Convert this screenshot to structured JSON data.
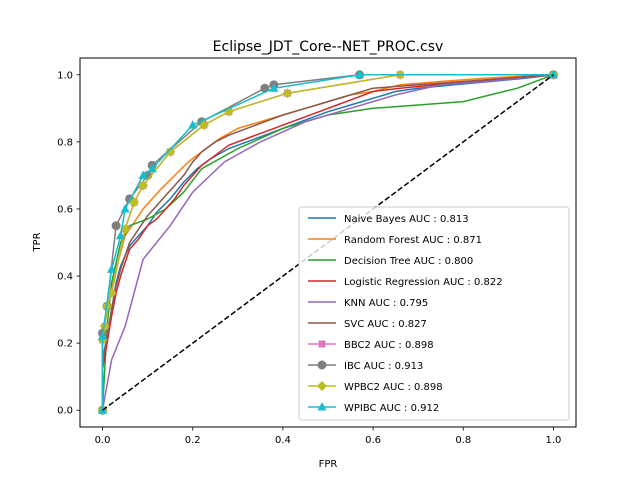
{
  "chart_data": {
    "type": "line",
    "title": "Eclipse_JDT_Core--NET_PROC.csv",
    "xlabel": "FPR",
    "ylabel": "TPR",
    "xlim": [
      -0.05,
      1.05
    ],
    "ylim": [
      -0.05,
      1.05
    ],
    "x_ticks": [
      0.0,
      0.2,
      0.4,
      0.6,
      0.8,
      1.0
    ],
    "y_ticks": [
      0.0,
      0.2,
      0.4,
      0.6,
      0.8,
      1.0
    ],
    "x_tick_labels": [
      "0.0",
      "0.2",
      "0.4",
      "0.6",
      "0.8",
      "1.0"
    ],
    "y_tick_labels": [
      "0.0",
      "0.2",
      "0.4",
      "0.6",
      "0.8",
      "1.0"
    ],
    "legend_position": "lower-right",
    "baseline": {
      "x": [
        0,
        1
      ],
      "y": [
        0,
        1
      ],
      "color": "#000000",
      "style": "dashed"
    },
    "series": [
      {
        "name": "Naive Bayes AUC : 0.813",
        "color": "#1f77b4",
        "marker": "none",
        "points": [
          [
            0,
            0
          ],
          [
            0,
            0.15
          ],
          [
            0.01,
            0.22
          ],
          [
            0.02,
            0.3
          ],
          [
            0.03,
            0.38
          ],
          [
            0.04,
            0.43
          ],
          [
            0.05,
            0.46
          ],
          [
            0.06,
            0.49
          ],
          [
            0.08,
            0.52
          ],
          [
            0.1,
            0.55
          ],
          [
            0.12,
            0.59
          ],
          [
            0.15,
            0.63
          ],
          [
            0.18,
            0.68
          ],
          [
            0.21,
            0.72
          ],
          [
            0.24,
            0.75
          ],
          [
            0.28,
            0.78
          ],
          [
            0.32,
            0.8
          ],
          [
            0.36,
            0.82
          ],
          [
            0.4,
            0.84
          ],
          [
            0.44,
            0.86
          ],
          [
            0.5,
            0.89
          ],
          [
            0.55,
            0.91
          ],
          [
            0.6,
            0.93
          ],
          [
            0.65,
            0.95
          ],
          [
            0.7,
            0.96
          ],
          [
            0.78,
            0.97
          ],
          [
            0.86,
            0.98
          ],
          [
            0.94,
            0.99
          ],
          [
            1,
            1
          ]
        ]
      },
      {
        "name": "Random Forest AUC : 0.871",
        "color": "#ff7f0e",
        "marker": "none",
        "points": [
          [
            0,
            0
          ],
          [
            0,
            0.2
          ],
          [
            0.01,
            0.3
          ],
          [
            0.02,
            0.36
          ],
          [
            0.03,
            0.42
          ],
          [
            0.04,
            0.47
          ],
          [
            0.05,
            0.52
          ],
          [
            0.07,
            0.56
          ],
          [
            0.09,
            0.6
          ],
          [
            0.11,
            0.63
          ],
          [
            0.13,
            0.66
          ],
          [
            0.16,
            0.7
          ],
          [
            0.19,
            0.74
          ],
          [
            0.22,
            0.77
          ],
          [
            0.26,
            0.81
          ],
          [
            0.3,
            0.84
          ],
          [
            0.35,
            0.86
          ],
          [
            0.4,
            0.88
          ],
          [
            0.45,
            0.9
          ],
          [
            0.5,
            0.92
          ],
          [
            0.55,
            0.94
          ],
          [
            0.6,
            0.95
          ],
          [
            0.66,
            0.97
          ],
          [
            0.75,
            0.98
          ],
          [
            0.85,
            0.99
          ],
          [
            1,
            1
          ]
        ]
      },
      {
        "name": "Decision Tree AUC : 0.800",
        "color": "#2ca02c",
        "marker": "none",
        "points": [
          [
            0,
            0
          ],
          [
            0.01,
            0.25
          ],
          [
            0.02,
            0.38
          ],
          [
            0.04,
            0.5
          ],
          [
            0.06,
            0.55
          ],
          [
            0.1,
            0.57
          ],
          [
            0.14,
            0.6
          ],
          [
            0.18,
            0.65
          ],
          [
            0.22,
            0.72
          ],
          [
            0.3,
            0.78
          ],
          [
            0.4,
            0.84
          ],
          [
            0.5,
            0.88
          ],
          [
            0.6,
            0.9
          ],
          [
            0.7,
            0.91
          ],
          [
            0.8,
            0.92
          ],
          [
            0.86,
            0.94
          ],
          [
            0.92,
            0.96
          ],
          [
            1,
            1
          ]
        ]
      },
      {
        "name": "Logistic Regression AUC : 0.822",
        "color": "#d62728",
        "marker": "none",
        "points": [
          [
            0,
            0
          ],
          [
            0,
            0.12
          ],
          [
            0.01,
            0.2
          ],
          [
            0.02,
            0.28
          ],
          [
            0.03,
            0.35
          ],
          [
            0.04,
            0.4
          ],
          [
            0.05,
            0.44
          ],
          [
            0.06,
            0.48
          ],
          [
            0.08,
            0.51
          ],
          [
            0.1,
            0.55
          ],
          [
            0.12,
            0.57
          ],
          [
            0.14,
            0.6
          ],
          [
            0.16,
            0.63
          ],
          [
            0.18,
            0.67
          ],
          [
            0.2,
            0.7
          ],
          [
            0.22,
            0.73
          ],
          [
            0.25,
            0.76
          ],
          [
            0.28,
            0.79
          ],
          [
            0.32,
            0.81
          ],
          [
            0.36,
            0.83
          ],
          [
            0.4,
            0.85
          ],
          [
            0.44,
            0.87
          ],
          [
            0.48,
            0.89
          ],
          [
            0.52,
            0.91
          ],
          [
            0.56,
            0.93
          ],
          [
            0.6,
            0.95
          ],
          [
            0.66,
            0.96
          ],
          [
            0.74,
            0.97
          ],
          [
            0.82,
            0.98
          ],
          [
            0.9,
            0.99
          ],
          [
            1,
            1
          ]
        ]
      },
      {
        "name": "KNN AUC : 0.795",
        "color": "#9467bd",
        "marker": "none",
        "points": [
          [
            0,
            0
          ],
          [
            0.02,
            0.15
          ],
          [
            0.05,
            0.25
          ],
          [
            0.09,
            0.45
          ],
          [
            0.15,
            0.55
          ],
          [
            0.2,
            0.65
          ],
          [
            0.27,
            0.74
          ],
          [
            0.35,
            0.8
          ],
          [
            0.45,
            0.86
          ],
          [
            0.55,
            0.9
          ],
          [
            0.65,
            0.94
          ],
          [
            0.75,
            0.97
          ],
          [
            0.85,
            0.98
          ],
          [
            1,
            1
          ]
        ]
      },
      {
        "name": "SVC AUC : 0.827",
        "color": "#8c564b",
        "marker": "none",
        "points": [
          [
            0,
            0
          ],
          [
            0,
            0.14
          ],
          [
            0.01,
            0.22
          ],
          [
            0.02,
            0.3
          ],
          [
            0.03,
            0.37
          ],
          [
            0.04,
            0.42
          ],
          [
            0.05,
            0.46
          ],
          [
            0.06,
            0.5
          ],
          [
            0.08,
            0.54
          ],
          [
            0.1,
            0.58
          ],
          [
            0.12,
            0.61
          ],
          [
            0.14,
            0.64
          ],
          [
            0.16,
            0.67
          ],
          [
            0.18,
            0.7
          ],
          [
            0.2,
            0.74
          ],
          [
            0.22,
            0.77
          ],
          [
            0.25,
            0.8
          ],
          [
            0.28,
            0.82
          ],
          [
            0.32,
            0.84
          ],
          [
            0.36,
            0.86
          ],
          [
            0.4,
            0.88
          ],
          [
            0.45,
            0.9
          ],
          [
            0.5,
            0.92
          ],
          [
            0.55,
            0.94
          ],
          [
            0.6,
            0.96
          ],
          [
            0.7,
            0.97
          ],
          [
            0.8,
            0.98
          ],
          [
            0.9,
            0.99
          ],
          [
            1,
            1
          ]
        ]
      },
      {
        "name": "BBC2 AUC : 0.898",
        "color": "#e377c2",
        "marker": "square",
        "points": [
          [
            0,
            0
          ],
          [
            0,
            0.21
          ],
          [
            0.005,
            0.25
          ],
          [
            0.01,
            0.31
          ],
          [
            0.02,
            0.35
          ],
          [
            0.05,
            0.54
          ],
          [
            0.07,
            0.62
          ],
          [
            0.09,
            0.67
          ],
          [
            0.15,
            0.77
          ],
          [
            0.225,
            0.85
          ],
          [
            0.28,
            0.89
          ],
          [
            0.41,
            0.945
          ],
          [
            0.66,
            1
          ],
          [
            1,
            1
          ]
        ]
      },
      {
        "name": "IBC AUC : 0.913",
        "color": "#7f7f7f",
        "marker": "circle",
        "points": [
          [
            0,
            0
          ],
          [
            0,
            0.23
          ],
          [
            0.01,
            0.31
          ],
          [
            0.03,
            0.55
          ],
          [
            0.06,
            0.63
          ],
          [
            0.1,
            0.7
          ],
          [
            0.11,
            0.73
          ],
          [
            0.22,
            0.86
          ],
          [
            0.36,
            0.96
          ],
          [
            0.38,
            0.97
          ],
          [
            0.57,
            1
          ],
          [
            1,
            1
          ]
        ]
      },
      {
        "name": "WPBC2 AUC : 0.898",
        "color": "#bcbd22",
        "marker": "diamond",
        "points": [
          [
            0,
            0
          ],
          [
            0,
            0.21
          ],
          [
            0.005,
            0.25
          ],
          [
            0.01,
            0.31
          ],
          [
            0.02,
            0.35
          ],
          [
            0.05,
            0.54
          ],
          [
            0.07,
            0.62
          ],
          [
            0.09,
            0.67
          ],
          [
            0.15,
            0.77
          ],
          [
            0.225,
            0.85
          ],
          [
            0.28,
            0.89
          ],
          [
            0.41,
            0.945
          ],
          [
            0.66,
            1
          ],
          [
            1,
            1
          ]
        ]
      },
      {
        "name": "WPIBC AUC : 0.912",
        "color": "#17becf",
        "marker": "triangle",
        "points": [
          [
            0,
            0
          ],
          [
            0,
            0.22
          ],
          [
            0.02,
            0.42
          ],
          [
            0.04,
            0.52
          ],
          [
            0.05,
            0.6
          ],
          [
            0.09,
            0.7
          ],
          [
            0.11,
            0.72
          ],
          [
            0.2,
            0.85
          ],
          [
            0.38,
            0.96
          ],
          [
            0.57,
            1
          ],
          [
            1,
            1
          ]
        ]
      }
    ]
  }
}
